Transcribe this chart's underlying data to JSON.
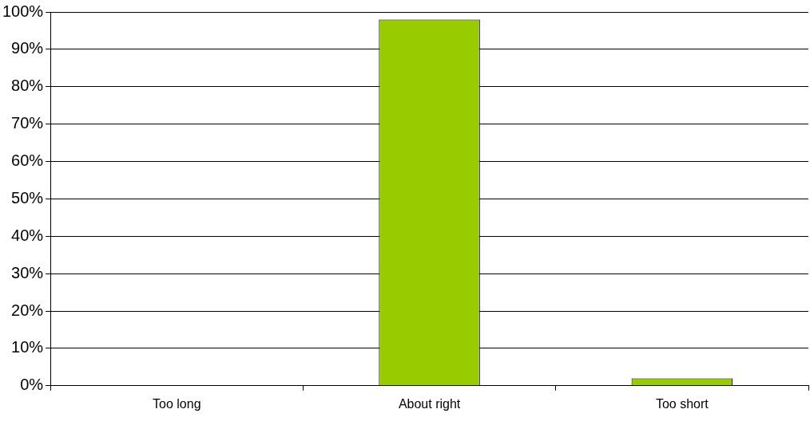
{
  "chart_data": {
    "type": "bar",
    "categories": [
      "Too long",
      "About right",
      "Too short"
    ],
    "values": [
      0,
      98,
      2
    ],
    "color": "#99cc00",
    "ylim": [
      0,
      100
    ],
    "yticks": [
      {
        "value": 0,
        "label": "0%"
      },
      {
        "value": 10,
        "label": "10%"
      },
      {
        "value": 20,
        "label": "20%"
      },
      {
        "value": 30,
        "label": "30%"
      },
      {
        "value": 40,
        "label": "40%"
      },
      {
        "value": 50,
        "label": "50%"
      },
      {
        "value": 60,
        "label": "60%"
      },
      {
        "value": 70,
        "label": "70%"
      },
      {
        "value": 80,
        "label": "80%"
      },
      {
        "value": 90,
        "label": "90%"
      },
      {
        "value": 100,
        "label": "100%"
      }
    ],
    "grid": "y",
    "legend": false
  }
}
